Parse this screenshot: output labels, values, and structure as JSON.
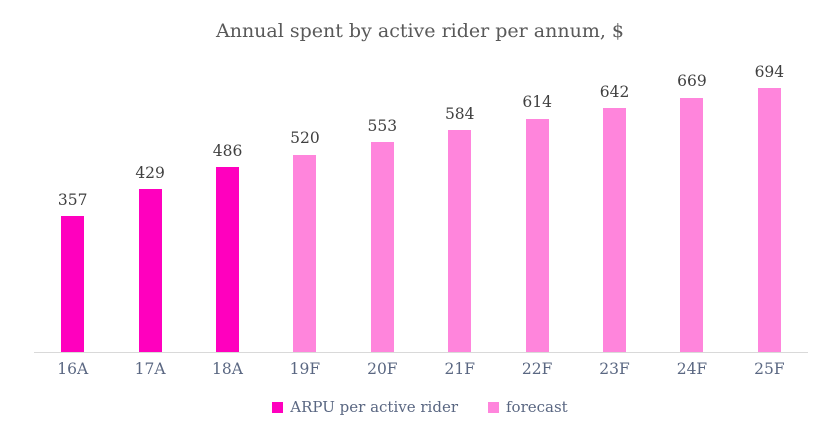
{
  "title": "Annual spent by active rider per annum, $",
  "colors": {
    "actual_bar": "#ff00be",
    "forecast_bar": "#ff85dc",
    "axis_line": "#d9d9d9",
    "title_text": "#595959",
    "data_label_text": "#404040",
    "axis_label_text": "#5a6782"
  },
  "legend": {
    "items": [
      {
        "label": "ARPU per active rider",
        "series": "actual"
      },
      {
        "label": "forecast",
        "series": "forecast"
      }
    ],
    "position": "bottom"
  },
  "chart_data": {
    "type": "bar",
    "title": "Annual spent by active rider per annum, $",
    "categories": [
      "16A",
      "17A",
      "18A",
      "19F",
      "20F",
      "21F",
      "22F",
      "23F",
      "24F",
      "25F"
    ],
    "series": [
      {
        "name": "ARPU per active rider",
        "color": "#ff00be",
        "values": [
          357,
          429,
          486,
          null,
          null,
          null,
          null,
          null,
          null,
          null
        ]
      },
      {
        "name": "forecast",
        "color": "#ff85dc",
        "values": [
          null,
          null,
          null,
          520,
          553,
          584,
          614,
          642,
          669,
          694
        ]
      }
    ],
    "xlabel": "",
    "ylabel": "",
    "ylim": [
      0,
      790
    ],
    "grid": false,
    "data_labels": true,
    "legend_position": "bottom"
  }
}
